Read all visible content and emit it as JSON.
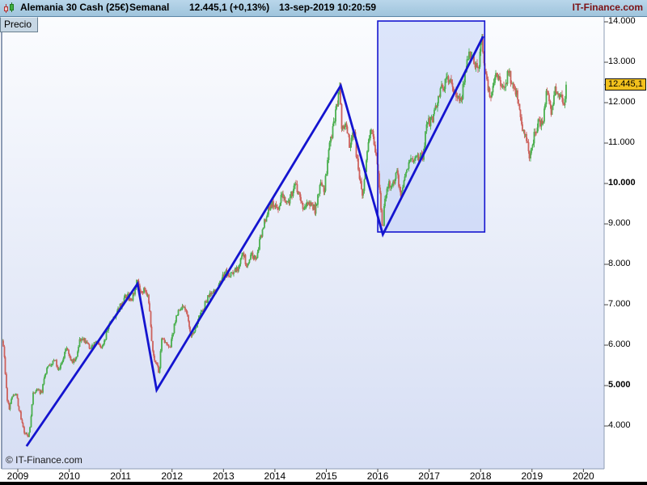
{
  "header": {
    "instrument": "Alemania 30 Cash (25€)",
    "timeframe": "Semanal",
    "price_change": "12.445,1 (+0,13%)",
    "timestamp": "13-sep-2019 10:20:59",
    "brand": "IT-Finance.com"
  },
  "tabs": {
    "price_label": "Precio"
  },
  "watermark": "© IT-Finance.com",
  "price_tag": "12.445,1",
  "colors": {
    "header_bg": "#aecde2",
    "up": "#4aaf4e",
    "down": "#cd615c",
    "trend": "#1414cf",
    "box_fill": "rgba(158,182,245,0.32)",
    "tag_bg": "#f2c11d",
    "brand_text": "#7c1114",
    "plot_top": "#fbfcfe",
    "plot_bottom": "#d6def4",
    "border": "#8d9cb5",
    "tick": "#444444"
  },
  "chart_data": {
    "type": "candlestick",
    "title": "Alemania 30 Cash (25€) Semanal",
    "instrument": "Alemania 30 Cash",
    "timeframe": "weekly",
    "last_price": 12445.1,
    "x_ticks": [
      2009,
      2010,
      2011,
      2012,
      2013,
      2014,
      2015,
      2016,
      2017,
      2018,
      2019,
      2020
    ],
    "y_ticks": [
      {
        "v": 14000,
        "label": "14.000",
        "bold": false
      },
      {
        "v": 13000,
        "label": "13.000",
        "bold": false
      },
      {
        "v": 12000,
        "label": "12.000",
        "bold": false
      },
      {
        "v": 11000,
        "label": "11.000",
        "bold": false
      },
      {
        "v": 10000,
        "label": "10.000",
        "bold": true
      },
      {
        "v": 9000,
        "label": "9.000",
        "bold": false
      },
      {
        "v": 8000,
        "label": "8.000",
        "bold": false
      },
      {
        "v": 7000,
        "label": "7.000",
        "bold": false
      },
      {
        "v": 6000,
        "label": "6.000",
        "bold": false
      },
      {
        "v": 5000,
        "label": "5.000",
        "bold": true
      },
      {
        "v": 4000,
        "label": "4.000",
        "bold": false
      }
    ],
    "x_range": [
      2008.69,
      2020.4
    ],
    "y_range": [
      2940,
      14120
    ],
    "grid": false,
    "legend": false,
    "start": 2008.7,
    "end": 2019.665,
    "anchors": [
      [
        2008.708,
        6060
      ],
      [
        2008.75,
        5500
      ],
      [
        2008.792,
        4650
      ],
      [
        2008.833,
        4450
      ],
      [
        2008.875,
        4670
      ],
      [
        2008.958,
        4810
      ],
      [
        2009.042,
        4340
      ],
      [
        2009.125,
        3844
      ],
      [
        2009.208,
        3700
      ],
      [
        2009.25,
        4085
      ],
      [
        2009.292,
        4769
      ],
      [
        2009.375,
        4940
      ],
      [
        2009.458,
        4809
      ],
      [
        2009.542,
        5332
      ],
      [
        2009.625,
        5517
      ],
      [
        2009.708,
        5675
      ],
      [
        2009.792,
        5415
      ],
      [
        2009.875,
        5626
      ],
      [
        2009.958,
        5957
      ],
      [
        2010.042,
        5609
      ],
      [
        2010.125,
        5598
      ],
      [
        2010.208,
        6154
      ],
      [
        2010.292,
        6136
      ],
      [
        2010.375,
        5964
      ],
      [
        2010.458,
        5966
      ],
      [
        2010.542,
        6148
      ],
      [
        2010.625,
        5925
      ],
      [
        2010.708,
        6229
      ],
      [
        2010.792,
        6601
      ],
      [
        2010.875,
        6688
      ],
      [
        2010.958,
        6914
      ],
      [
        2011.042,
        7077
      ],
      [
        2011.125,
        7272
      ],
      [
        2011.208,
        7041
      ],
      [
        2011.292,
        7514
      ],
      [
        2011.333,
        7600
      ],
      [
        2011.375,
        7293
      ],
      [
        2011.458,
        7376
      ],
      [
        2011.542,
        7159
      ],
      [
        2011.625,
        5785
      ],
      [
        2011.708,
        5502
      ],
      [
        2011.75,
        5250
      ],
      [
        2011.792,
        6141
      ],
      [
        2011.875,
        6088
      ],
      [
        2011.958,
        5898
      ],
      [
        2012.042,
        6459
      ],
      [
        2012.125,
        6856
      ],
      [
        2012.208,
        6947
      ],
      [
        2012.292,
        6761
      ],
      [
        2012.375,
        6264
      ],
      [
        2012.458,
        6416
      ],
      [
        2012.542,
        6772
      ],
      [
        2012.625,
        6971
      ],
      [
        2012.708,
        7216
      ],
      [
        2012.792,
        7260
      ],
      [
        2012.875,
        7405
      ],
      [
        2012.958,
        7612
      ],
      [
        2013.042,
        7776
      ],
      [
        2013.125,
        7741
      ],
      [
        2013.208,
        7795
      ],
      [
        2013.292,
        7914
      ],
      [
        2013.375,
        8349
      ],
      [
        2013.458,
        7959
      ],
      [
        2013.542,
        8276
      ],
      [
        2013.625,
        8103
      ],
      [
        2013.708,
        8594
      ],
      [
        2013.792,
        9034
      ],
      [
        2013.875,
        9405
      ],
      [
        2013.958,
        9552
      ],
      [
        2014.042,
        9306
      ],
      [
        2014.125,
        9692
      ],
      [
        2014.208,
        9556
      ],
      [
        2014.292,
        9603
      ],
      [
        2014.375,
        9943
      ],
      [
        2014.458,
        9833
      ],
      [
        2014.542,
        9407
      ],
      [
        2014.625,
        9470
      ],
      [
        2014.708,
        9474
      ],
      [
        2014.792,
        9327
      ],
      [
        2014.875,
        9981
      ],
      [
        2014.958,
        9806
      ],
      [
        2015.042,
        10694
      ],
      [
        2015.125,
        11402
      ],
      [
        2015.208,
        11966
      ],
      [
        2015.27,
        12350
      ],
      [
        2015.292,
        11454
      ],
      [
        2015.375,
        11414
      ],
      [
        2015.458,
        10945
      ],
      [
        2015.542,
        11309
      ],
      [
        2015.625,
        10259
      ],
      [
        2015.708,
        9660
      ],
      [
        2015.792,
        10850
      ],
      [
        2015.875,
        11382
      ],
      [
        2015.958,
        10743
      ],
      [
        2016.042,
        9798
      ],
      [
        2016.1,
        8800
      ],
      [
        2016.125,
        9495
      ],
      [
        2016.208,
        9966
      ],
      [
        2016.292,
        10039
      ],
      [
        2016.375,
        10263
      ],
      [
        2016.458,
        9680
      ],
      [
        2016.542,
        10337
      ],
      [
        2016.625,
        10593
      ],
      [
        2016.708,
        10511
      ],
      [
        2016.792,
        10665
      ],
      [
        2016.875,
        10640
      ],
      [
        2016.958,
        11481
      ],
      [
        2017.042,
        11535
      ],
      [
        2017.125,
        11834
      ],
      [
        2017.208,
        12313
      ],
      [
        2017.292,
        12438
      ],
      [
        2017.375,
        12615
      ],
      [
        2017.458,
        12325
      ],
      [
        2017.542,
        12118
      ],
      [
        2017.625,
        12056
      ],
      [
        2017.708,
        12829
      ],
      [
        2017.792,
        13230
      ],
      [
        2017.875,
        13024
      ],
      [
        2017.958,
        12918
      ],
      [
        2018.03,
        13560
      ],
      [
        2018.042,
        13189
      ],
      [
        2018.125,
        12436
      ],
      [
        2018.208,
        12097
      ],
      [
        2018.292,
        12612
      ],
      [
        2018.375,
        12604
      ],
      [
        2018.458,
        12306
      ],
      [
        2018.542,
        12806
      ],
      [
        2018.625,
        12364
      ],
      [
        2018.708,
        12247
      ],
      [
        2018.792,
        11447
      ],
      [
        2018.875,
        11257
      ],
      [
        2018.958,
        10559
      ],
      [
        2019.042,
        11173
      ],
      [
        2019.125,
        11516
      ],
      [
        2019.208,
        11526
      ],
      [
        2019.292,
        12344
      ],
      [
        2019.375,
        11727
      ],
      [
        2019.458,
        12399
      ],
      [
        2019.542,
        12189
      ],
      [
        2019.625,
        11939
      ],
      [
        2019.665,
        12445.1
      ]
    ],
    "zigzag": [
      [
        2009.17,
        3500
      ],
      [
        2011.33,
        7520
      ],
      [
        2011.7,
        4890
      ],
      [
        2015.28,
        12420
      ],
      [
        2016.1,
        8740
      ],
      [
        2018.05,
        13640
      ]
    ],
    "highlight_box": {
      "t1": 2016.0,
      "t2": 2018.08,
      "price_top": 14020,
      "price_bottom": 8800
    }
  }
}
